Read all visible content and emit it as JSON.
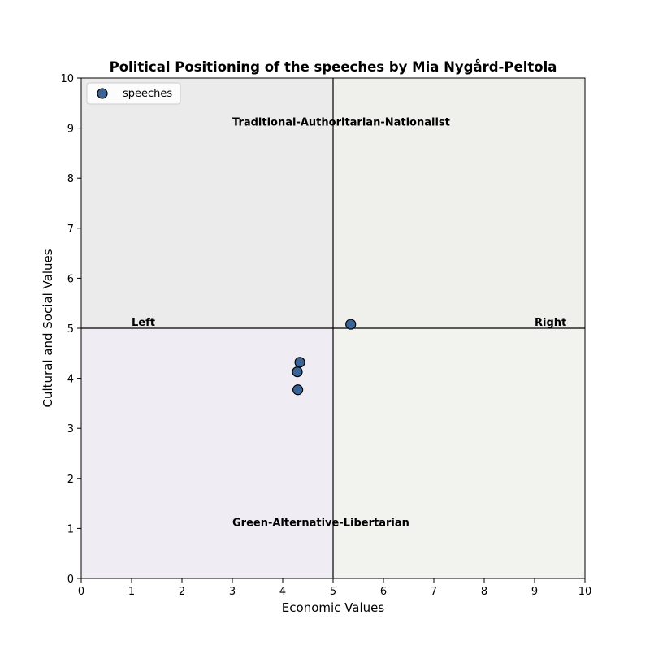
{
  "chart_data": {
    "type": "scatter",
    "title": "Political Positioning of the speeches by Mia Nygård-Peltola",
    "xlabel": "Economic Values",
    "ylabel": "Cultural and Social Values",
    "xlim": [
      0,
      10
    ],
    "ylim": [
      0,
      10
    ],
    "xticks": [
      "0",
      "1",
      "2",
      "3",
      "4",
      "5",
      "6",
      "7",
      "8",
      "9",
      "10"
    ],
    "yticks": [
      "0",
      "1",
      "2",
      "3",
      "4",
      "5",
      "6",
      "7",
      "8",
      "9",
      "10"
    ],
    "grid": false,
    "legend_position": "top-left",
    "quadrant_divider": {
      "x": 5,
      "y": 5
    },
    "quadrants": [
      {
        "name": "top-left",
        "x_range": [
          0,
          5
        ],
        "y_range": [
          5,
          10
        ],
        "color": "#ebebeb"
      },
      {
        "name": "top-right",
        "x_range": [
          5,
          10
        ],
        "y_range": [
          5,
          10
        ],
        "color": "#eff0ec"
      },
      {
        "name": "bottom-left",
        "x_range": [
          0,
          5
        ],
        "y_range": [
          0,
          5
        ],
        "color": "#efedf3"
      },
      {
        "name": "bottom-right",
        "x_range": [
          5,
          10
        ],
        "y_range": [
          0,
          5
        ],
        "color": "#f2f3ee"
      }
    ],
    "annotations": [
      {
        "text": "Traditional-Authoritarian-Nationalist",
        "x": 3,
        "y": 9.05
      },
      {
        "text": "Left",
        "x": 1,
        "y": 5.05
      },
      {
        "text": "Right",
        "x": 9,
        "y": 5.05
      },
      {
        "text": "Green-Alternative-Libertarian",
        "x": 3,
        "y": 1.05
      }
    ],
    "series": [
      {
        "name": "speeches",
        "color": "#3a6496",
        "edge_color": "#000000",
        "points": [
          {
            "x": 5.35,
            "y": 5.08
          },
          {
            "x": 4.34,
            "y": 4.32
          },
          {
            "x": 4.29,
            "y": 4.13
          },
          {
            "x": 4.3,
            "y": 3.77
          }
        ]
      }
    ]
  }
}
